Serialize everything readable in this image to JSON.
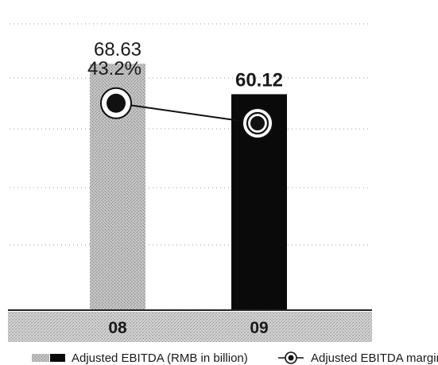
{
  "chart_data": {
    "type": "bar",
    "categories": [
      "08",
      "09"
    ],
    "series": [
      {
        "name": "Adjusted EBITDA (RMB in billion)",
        "values": [
          68.63,
          60.12
        ],
        "value_labels": [
          "68.63",
          "60.12"
        ],
        "bar_colors": [
          "#b4b4b4",
          "#0a0a0a"
        ]
      },
      {
        "name": "Adjusted EBITDA margin",
        "type": "line",
        "values": [
          43.2,
          39.0
        ],
        "value_labels": [
          "43.2%",
          ""
        ]
      }
    ],
    "ylim": [
      0,
      80
    ],
    "margin_ylim": [
      0,
      60
    ],
    "grid": true,
    "legend_position": "bottom"
  }
}
